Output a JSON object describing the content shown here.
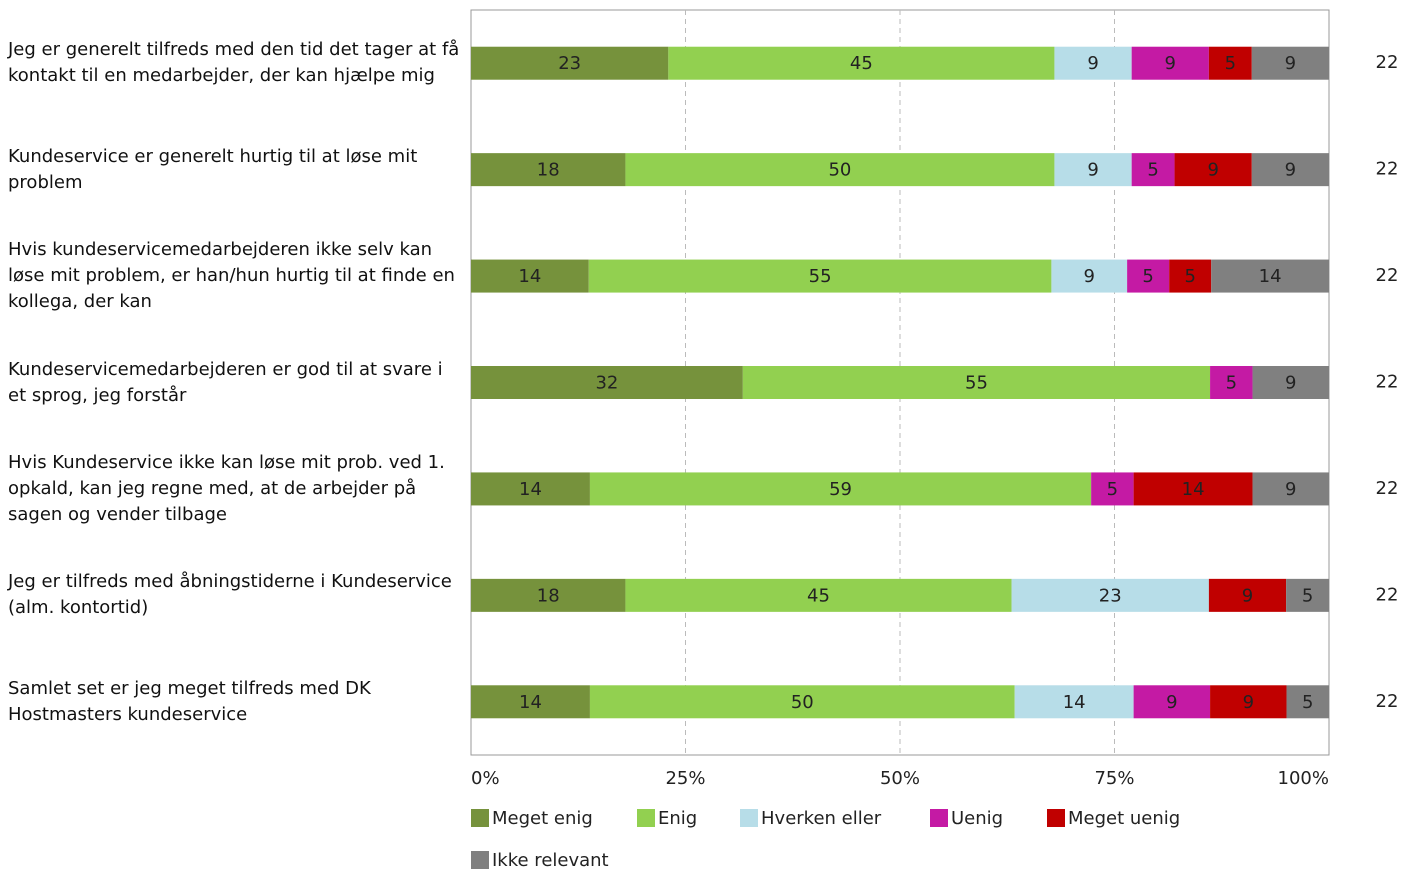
{
  "chart_data": {
    "type": "stacked-bar-100",
    "categories": [
      "Jeg er generelt tilfreds med den tid det tager at få kontakt til en medarbejder, der kan hjælpe mig",
      "Kundeservice er generelt hurtig til at løse mit problem",
      "Hvis kundeservicemedarbejderen ikke selv kan løse mit problem, er han/hun hurtig til at finde en kollega, der kan",
      "Kundeservicemedarbejderen er god til at svare i et sprog, jeg forstår",
      "Hvis Kundeservice ikke kan løse mit prob. ved 1. opkald, kan jeg regne med, at de arbejder på sagen og vender tilbage",
      "Jeg er tilfreds med åbningstiderne i Kundeservice (alm. kontortid)",
      "Samlet set er jeg meget tilfreds med DK Hostmasters kundeservice"
    ],
    "series": [
      {
        "name": "Meget enig",
        "color": "#76923c",
        "values": [
          23,
          18,
          14,
          32,
          14,
          18,
          14
        ]
      },
      {
        "name": "Enig",
        "color": "#92d050",
        "values": [
          45,
          50,
          55,
          55,
          59,
          45,
          50
        ]
      },
      {
        "name": "Hverken eller",
        "color": "#b7dde8",
        "values": [
          9,
          9,
          9,
          null,
          null,
          23,
          14
        ]
      },
      {
        "name": "Uenig",
        "color": "#c41aa4",
        "values": [
          9,
          5,
          5,
          5,
          5,
          null,
          9
        ]
      },
      {
        "name": "Meget uenig",
        "color": "#c00000",
        "values": [
          5,
          9,
          5,
          null,
          14,
          9,
          9
        ]
      },
      {
        "name": "Ikke relevant",
        "color": "#808080",
        "values": [
          9,
          9,
          14,
          9,
          9,
          5,
          5
        ]
      }
    ],
    "n": [
      22,
      22,
      22,
      22,
      22,
      22,
      22
    ],
    "xlim": [
      0,
      100
    ],
    "xticks": [
      {
        "value": 0,
        "label": "0%"
      },
      {
        "value": 25,
        "label": "25%"
      },
      {
        "value": 50,
        "label": "50%"
      },
      {
        "value": 75,
        "label": "75%"
      },
      {
        "value": 100,
        "label": "100%"
      }
    ],
    "grid": true
  }
}
